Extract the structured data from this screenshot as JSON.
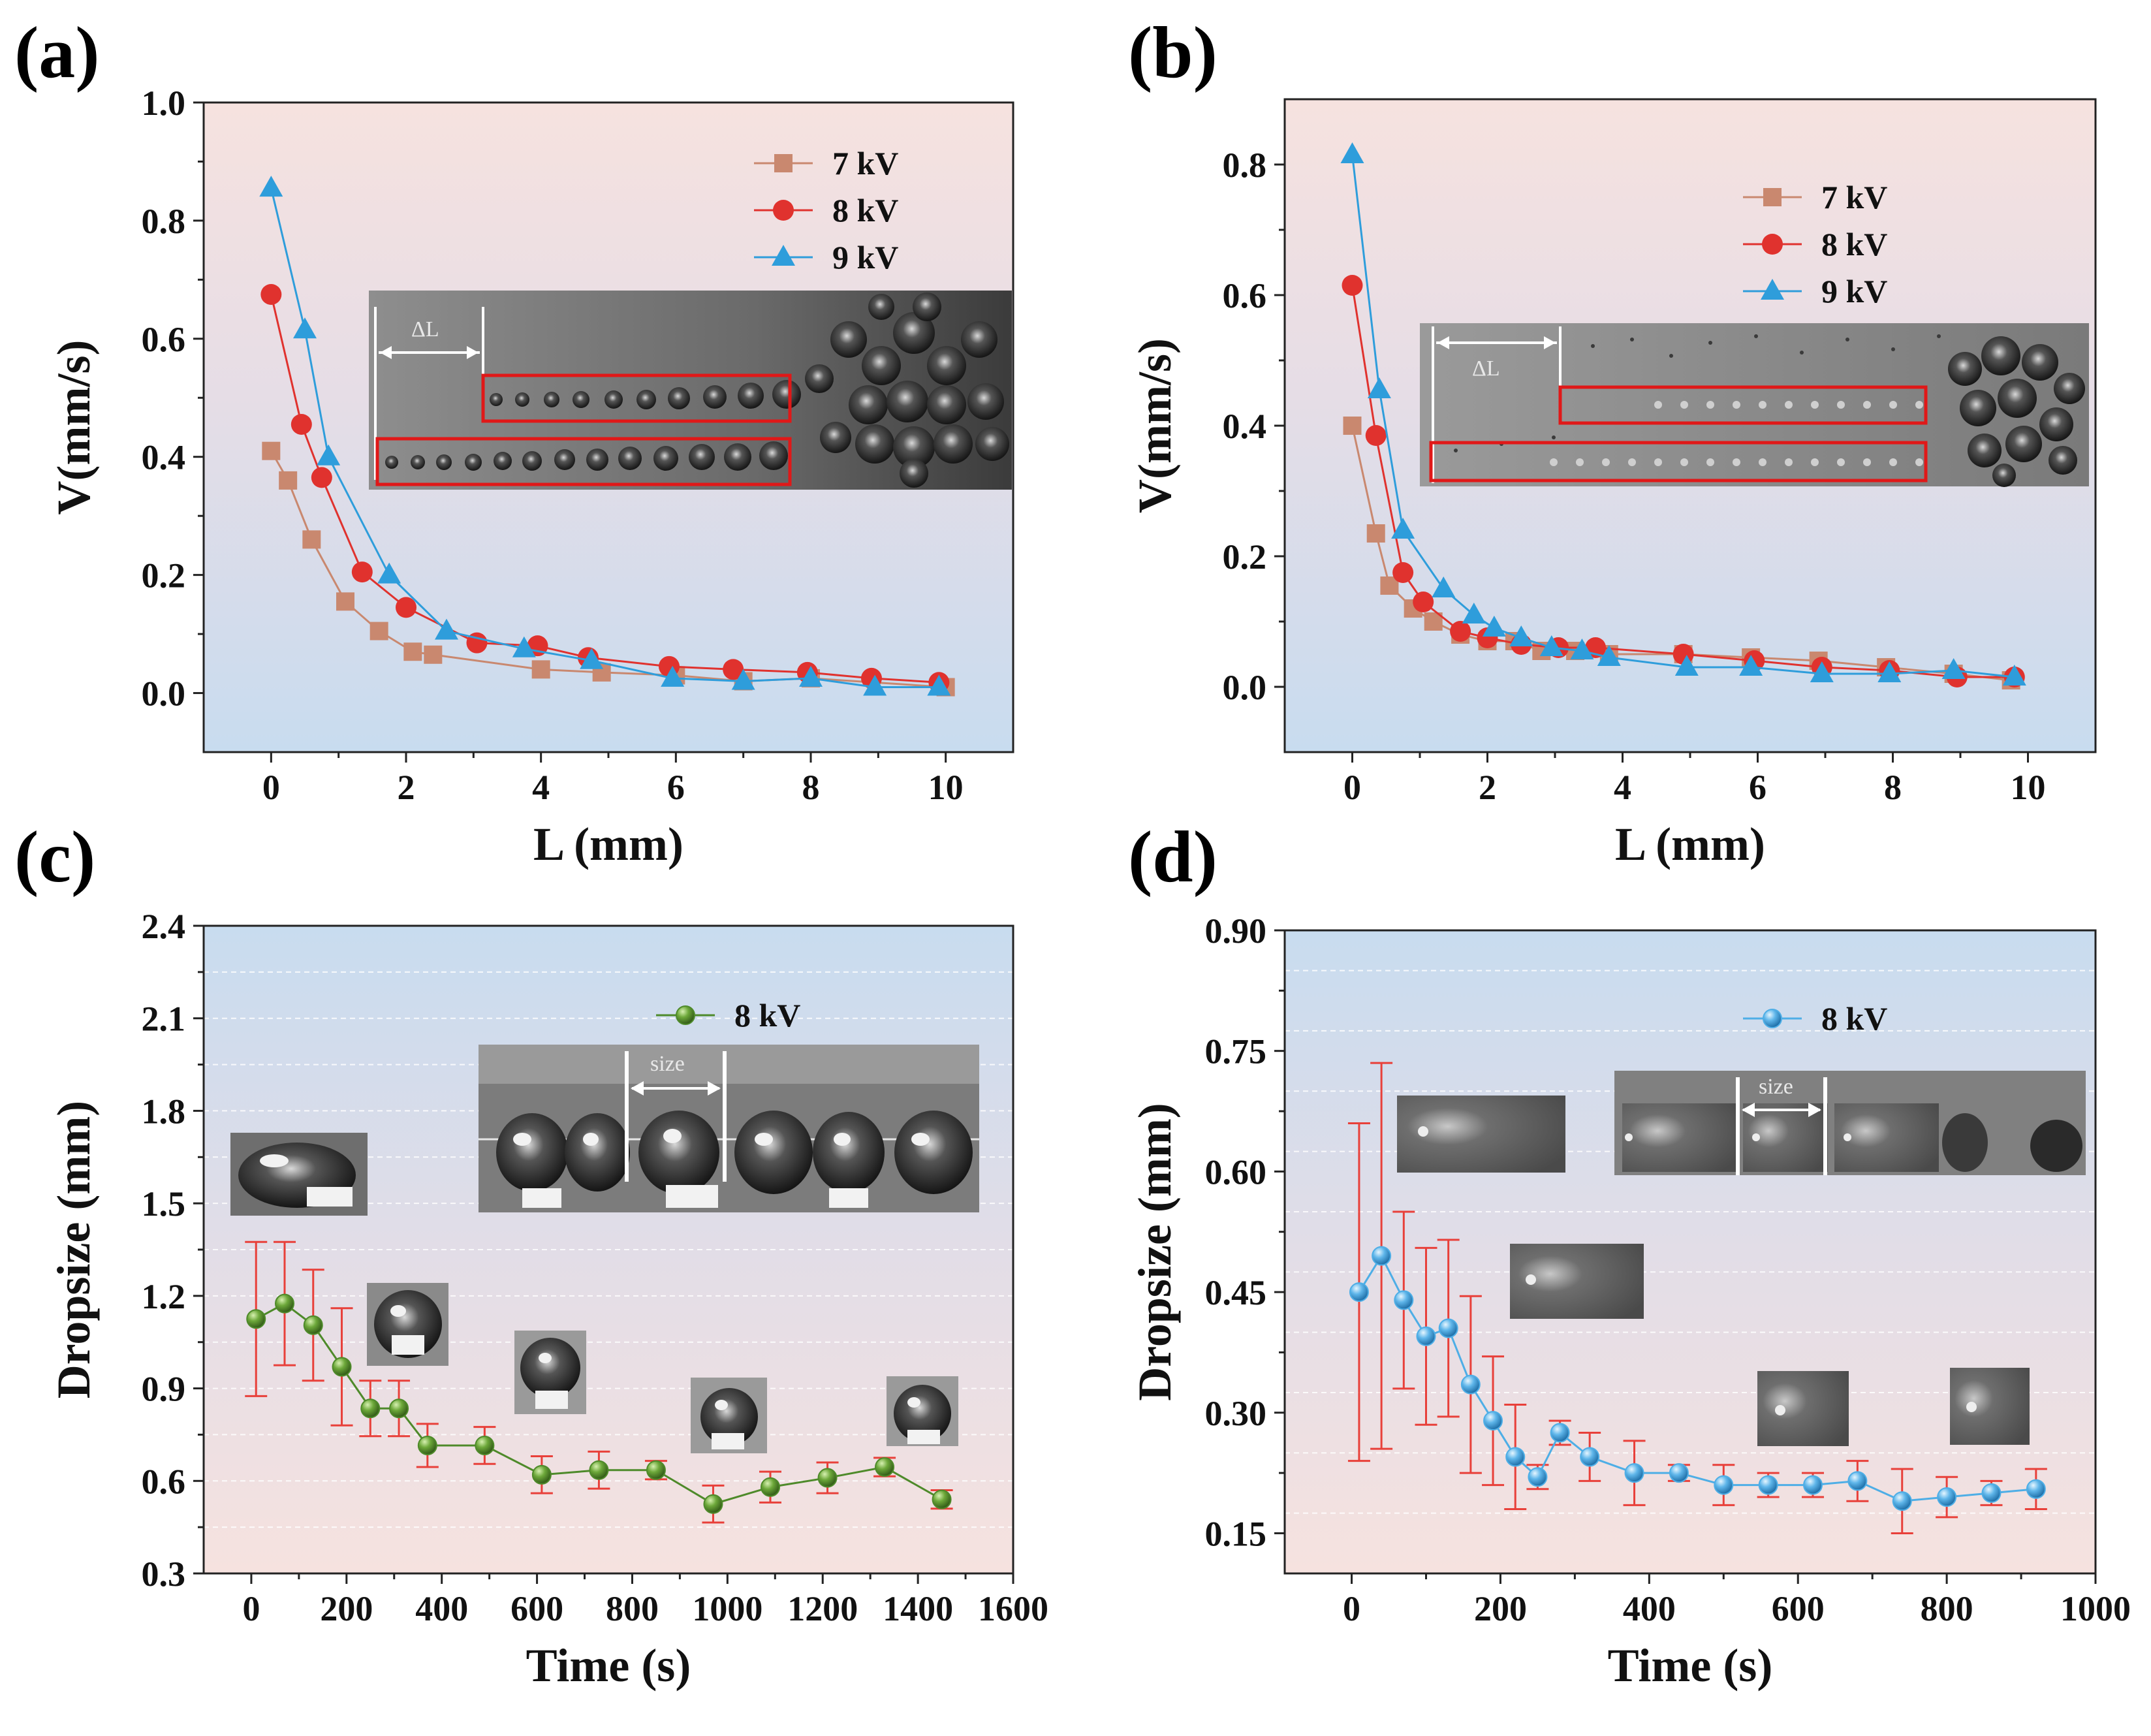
{
  "colors": {
    "series_7kV": "#c9886f",
    "series_8kV": "#e0322e",
    "series_9kV": "#2e9ddb",
    "series_green": "#4e8a2a",
    "series_lightblue": "#4eaee6",
    "errorbar": "#e8403a",
    "bg_pink": "#f5e3df",
    "bg_blue": "#cfe0ef"
  },
  "chart_data": [
    {
      "panel": "(a)",
      "type": "line",
      "xlabel": "L (mm)",
      "ylabel": "V(mm/s)",
      "xlim": [
        -1,
        11
      ],
      "ylim": [
        -0.1,
        1.0
      ],
      "xticks": [
        0,
        2,
        4,
        6,
        8,
        10
      ],
      "yticks": [
        0.0,
        0.2,
        0.4,
        0.6,
        0.8,
        1.0
      ],
      "xtick_labels": [
        "0",
        "2",
        "4",
        "6",
        "8",
        "10"
      ],
      "ytick_labels": [
        "0.0",
        "0.2",
        "0.4",
        "0.6",
        "0.8",
        "1.0"
      ],
      "background": "top-pink-bottom-blue",
      "legend_position": "top-right",
      "inset_label": "ΔL",
      "series": [
        {
          "name": "7 kV",
          "marker": "square",
          "color": "#c9886f",
          "x": [
            0,
            0.25,
            0.6,
            1.1,
            1.6,
            2.1,
            2.4,
            4.0,
            4.9,
            6.0,
            7.0,
            8.0,
            10.0
          ],
          "y": [
            0.41,
            0.36,
            0.26,
            0.155,
            0.105,
            0.07,
            0.065,
            0.04,
            0.035,
            0.03,
            0.02,
            0.025,
            0.01
          ]
        },
        {
          "name": "8 kV",
          "marker": "circle",
          "color": "#e0322e",
          "x": [
            0,
            0.45,
            0.75,
            1.35,
            2.0,
            3.05,
            3.95,
            4.7,
            5.9,
            6.85,
            7.95,
            8.9,
            9.9
          ],
          "y": [
            0.675,
            0.455,
            0.365,
            0.205,
            0.145,
            0.085,
            0.08,
            0.06,
            0.045,
            0.04,
            0.035,
            0.025,
            0.018
          ]
        },
        {
          "name": "9 kV",
          "marker": "triangle",
          "color": "#2e9ddb",
          "x": [
            0,
            0.5,
            0.85,
            1.75,
            2.6,
            3.75,
            4.75,
            5.95,
            7.0,
            8.0,
            8.95,
            9.9
          ],
          "y": [
            0.855,
            0.615,
            0.4,
            0.2,
            0.105,
            0.075,
            0.055,
            0.025,
            0.02,
            0.025,
            0.01,
            0.01
          ]
        }
      ]
    },
    {
      "panel": "(b)",
      "type": "line",
      "xlabel": "L (mm)",
      "ylabel": "V(mm/s)",
      "xlim": [
        -1,
        11
      ],
      "ylim": [
        -0.1,
        0.9
      ],
      "xticks": [
        0,
        2,
        4,
        6,
        8,
        10
      ],
      "yticks": [
        0.0,
        0.2,
        0.4,
        0.6,
        0.8
      ],
      "xtick_labels": [
        "0",
        "2",
        "4",
        "6",
        "8",
        "10"
      ],
      "ytick_labels": [
        "0.0",
        "0.2",
        "0.4",
        "0.6",
        "0.8"
      ],
      "background": "top-pink-bottom-blue",
      "legend_position": "top-right",
      "inset_label": "ΔL",
      "series": [
        {
          "name": "7 kV",
          "marker": "square",
          "color": "#c9886f",
          "x": [
            0,
            0.35,
            0.55,
            0.9,
            1.2,
            1.6,
            2.0,
            2.4,
            2.8,
            3.3,
            3.8,
            4.9,
            5.9,
            6.9,
            7.9,
            8.9,
            9.75
          ],
          "y": [
            0.4,
            0.235,
            0.155,
            0.12,
            0.1,
            0.08,
            0.07,
            0.07,
            0.055,
            0.055,
            0.05,
            0.05,
            0.045,
            0.04,
            0.03,
            0.02,
            0.01
          ]
        },
        {
          "name": "8 kV",
          "marker": "circle",
          "color": "#e0322e",
          "x": [
            0,
            0.35,
            0.75,
            1.05,
            1.6,
            2.0,
            2.5,
            3.05,
            3.6,
            4.9,
            5.95,
            6.95,
            7.95,
            8.95,
            9.8
          ],
          "y": [
            0.615,
            0.385,
            0.175,
            0.13,
            0.085,
            0.075,
            0.065,
            0.06,
            0.06,
            0.05,
            0.04,
            0.03,
            0.025,
            0.015,
            0.015
          ]
        },
        {
          "name": "9 kV",
          "marker": "triangle",
          "color": "#2e9ddb",
          "x": [
            0,
            0.4,
            0.75,
            1.35,
            1.8,
            2.1,
            2.5,
            2.95,
            3.4,
            3.8,
            4.95,
            5.9,
            6.95,
            7.95,
            8.9,
            9.8
          ],
          "y": [
            0.815,
            0.455,
            0.24,
            0.15,
            0.11,
            0.09,
            0.075,
            0.06,
            0.055,
            0.045,
            0.03,
            0.03,
            0.02,
            0.02,
            0.025,
            0.015
          ]
        }
      ]
    },
    {
      "panel": "(c)",
      "type": "line",
      "xlabel": "Time (s)",
      "ylabel": "Dropsize (mm)",
      "xlim": [
        -100,
        1600
      ],
      "ylim": [
        0.3,
        2.4
      ],
      "xticks": [
        0,
        200,
        400,
        600,
        800,
        1000,
        1200,
        1400,
        1600
      ],
      "yticks": [
        0.3,
        0.6,
        0.9,
        1.2,
        1.5,
        1.8,
        2.1,
        2.4
      ],
      "xtick_labels": [
        "0",
        "200",
        "400",
        "600",
        "800",
        "1000",
        "1200",
        "1400",
        "1600"
      ],
      "ytick_labels": [
        "0.3",
        "0.6",
        "0.9",
        "1.2",
        "1.5",
        "1.8",
        "2.1",
        "2.4"
      ],
      "background": "top-blue-bottom-pink",
      "legend_position": "top-right",
      "inset_label": "size",
      "series": [
        {
          "name": "8 kV",
          "marker": "sphere",
          "color": "#4e8a2a",
          "x": [
            10,
            70,
            130,
            190,
            250,
            310,
            370,
            490,
            610,
            730,
            850,
            970,
            1090,
            1210,
            1330,
            1450
          ],
          "y": [
            1.125,
            1.175,
            1.105,
            0.97,
            0.835,
            0.835,
            0.715,
            0.715,
            0.62,
            0.635,
            0.635,
            0.525,
            0.58,
            0.61,
            0.645,
            0.54
          ],
          "err": [
            0.25,
            0.2,
            0.18,
            0.19,
            0.09,
            0.09,
            0.07,
            0.06,
            0.06,
            0.06,
            0.03,
            0.06,
            0.05,
            0.05,
            0.03,
            0.03
          ]
        }
      ]
    },
    {
      "panel": "(d)",
      "type": "line",
      "xlabel": "Time (s)",
      "ylabel": "Dropsize (mm)",
      "xlim": [
        -90,
        1000
      ],
      "ylim": [
        0.1,
        0.9
      ],
      "xticks": [
        0,
        200,
        400,
        600,
        800,
        1000
      ],
      "yticks": [
        0.15,
        0.3,
        0.45,
        0.6,
        0.75,
        0.9
      ],
      "xtick_labels": [
        "0",
        "200",
        "400",
        "600",
        "800",
        "1000"
      ],
      "ytick_labels": [
        "0.15",
        "0.30",
        "0.45",
        "0.60",
        "0.75",
        "0.90"
      ],
      "background": "top-blue-bottom-pink",
      "legend_position": "top-right",
      "inset_label": "size",
      "series": [
        {
          "name": "8 kV",
          "marker": "sphere",
          "color": "#4eaee6",
          "x": [
            10,
            40,
            70,
            100,
            130,
            160,
            190,
            220,
            250,
            280,
            320,
            380,
            440,
            500,
            560,
            620,
            680,
            740,
            800,
            860,
            920
          ],
          "y": [
            0.45,
            0.495,
            0.44,
            0.395,
            0.405,
            0.335,
            0.29,
            0.245,
            0.22,
            0.275,
            0.245,
            0.225,
            0.225,
            0.21,
            0.21,
            0.21,
            0.215,
            0.19,
            0.195,
            0.2,
            0.205
          ],
          "err": [
            0.21,
            0.24,
            0.11,
            0.11,
            0.11,
            0.11,
            0.08,
            0.065,
            0.015,
            0.015,
            0.03,
            0.04,
            0.01,
            0.025,
            0.015,
            0.015,
            0.025,
            0.04,
            0.025,
            0.015,
            0.025
          ]
        }
      ]
    }
  ]
}
